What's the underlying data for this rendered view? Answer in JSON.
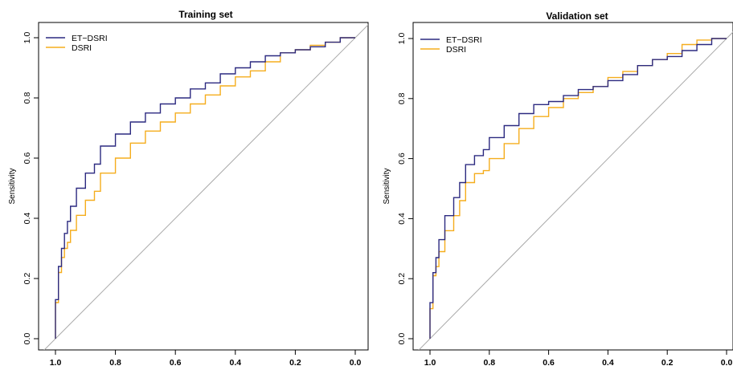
{
  "chart_data": [
    {
      "type": "line",
      "title": "Training set",
      "xlabel": "",
      "ylabel": "Sensitivity",
      "x_reversed": true,
      "xlim": [
        1.0,
        0.0
      ],
      "ylim": [
        0.0,
        1.0
      ],
      "x_ticks": [
        "1.0",
        "0.8",
        "0.6",
        "0.4",
        "0.2",
        "0.0"
      ],
      "y_ticks": [
        "0.0",
        "0.2",
        "0.4",
        "0.6",
        "0.8",
        "1.0"
      ],
      "legend_position": "top-left",
      "grid": false,
      "reference_line": {
        "from": [
          1.0,
          0.0
        ],
        "to": [
          0.0,
          1.0
        ],
        "color": "#a9a9a9"
      },
      "series": [
        {
          "name": "ET−DSRI",
          "color": "#2c2a80",
          "x": [
            1.0,
            0.99,
            0.98,
            0.97,
            0.96,
            0.95,
            0.93,
            0.9,
            0.87,
            0.85,
            0.8,
            0.75,
            0.7,
            0.65,
            0.6,
            0.55,
            0.5,
            0.45,
            0.4,
            0.35,
            0.3,
            0.25,
            0.2,
            0.15,
            0.1,
            0.05,
            0.0
          ],
          "y": [
            0.0,
            0.13,
            0.24,
            0.3,
            0.35,
            0.39,
            0.44,
            0.5,
            0.55,
            0.58,
            0.64,
            0.68,
            0.72,
            0.75,
            0.78,
            0.8,
            0.83,
            0.85,
            0.88,
            0.9,
            0.92,
            0.94,
            0.95,
            0.96,
            0.97,
            0.985,
            1.0
          ]
        },
        {
          "name": "DSRI",
          "color": "#f5ad1d",
          "x": [
            1.0,
            0.99,
            0.98,
            0.97,
            0.96,
            0.95,
            0.93,
            0.9,
            0.87,
            0.85,
            0.8,
            0.75,
            0.7,
            0.65,
            0.6,
            0.55,
            0.5,
            0.45,
            0.4,
            0.35,
            0.3,
            0.25,
            0.2,
            0.15,
            0.1,
            0.05,
            0.0
          ],
          "y": [
            0.0,
            0.12,
            0.22,
            0.27,
            0.3,
            0.32,
            0.36,
            0.41,
            0.46,
            0.49,
            0.55,
            0.6,
            0.65,
            0.69,
            0.72,
            0.75,
            0.78,
            0.81,
            0.84,
            0.87,
            0.89,
            0.92,
            0.95,
            0.96,
            0.975,
            0.985,
            1.0
          ]
        }
      ]
    },
    {
      "type": "line",
      "title": "Validation set",
      "xlabel": "",
      "ylabel": "Sensitivity",
      "x_reversed": true,
      "xlim": [
        1.0,
        0.0
      ],
      "ylim": [
        0.0,
        1.0
      ],
      "x_ticks": [
        "1.0",
        "0.8",
        "0.6",
        "0.4",
        "0.2",
        "0.0"
      ],
      "y_ticks": [
        "0.0",
        "0.2",
        "0.4",
        "0.6",
        "0.8",
        "1.0"
      ],
      "legend_position": "top-left",
      "grid": false,
      "reference_line": {
        "from": [
          1.0,
          0.0
        ],
        "to": [
          0.0,
          1.0
        ],
        "color": "#a9a9a9"
      },
      "series": [
        {
          "name": "ET−DSRI",
          "color": "#2c2a80",
          "x": [
            1.0,
            0.99,
            0.98,
            0.97,
            0.95,
            0.92,
            0.9,
            0.88,
            0.85,
            0.82,
            0.8,
            0.75,
            0.7,
            0.65,
            0.6,
            0.55,
            0.5,
            0.45,
            0.4,
            0.35,
            0.3,
            0.25,
            0.2,
            0.15,
            0.1,
            0.05,
            0.0
          ],
          "y": [
            0.0,
            0.12,
            0.22,
            0.27,
            0.33,
            0.41,
            0.47,
            0.52,
            0.58,
            0.61,
            0.63,
            0.67,
            0.71,
            0.75,
            0.78,
            0.79,
            0.81,
            0.83,
            0.84,
            0.86,
            0.88,
            0.91,
            0.93,
            0.94,
            0.96,
            0.98,
            1.0
          ]
        },
        {
          "name": "DSRI",
          "color": "#f5ad1d",
          "x": [
            1.0,
            0.99,
            0.98,
            0.97,
            0.95,
            0.92,
            0.9,
            0.88,
            0.85,
            0.82,
            0.8,
            0.75,
            0.7,
            0.65,
            0.6,
            0.55,
            0.5,
            0.45,
            0.4,
            0.35,
            0.3,
            0.25,
            0.2,
            0.15,
            0.1,
            0.05,
            0.0
          ],
          "y": [
            0.0,
            0.1,
            0.21,
            0.24,
            0.29,
            0.36,
            0.41,
            0.46,
            0.52,
            0.55,
            0.56,
            0.6,
            0.65,
            0.7,
            0.74,
            0.77,
            0.8,
            0.82,
            0.84,
            0.87,
            0.89,
            0.91,
            0.93,
            0.95,
            0.98,
            0.995,
            1.0
          ]
        }
      ]
    }
  ]
}
